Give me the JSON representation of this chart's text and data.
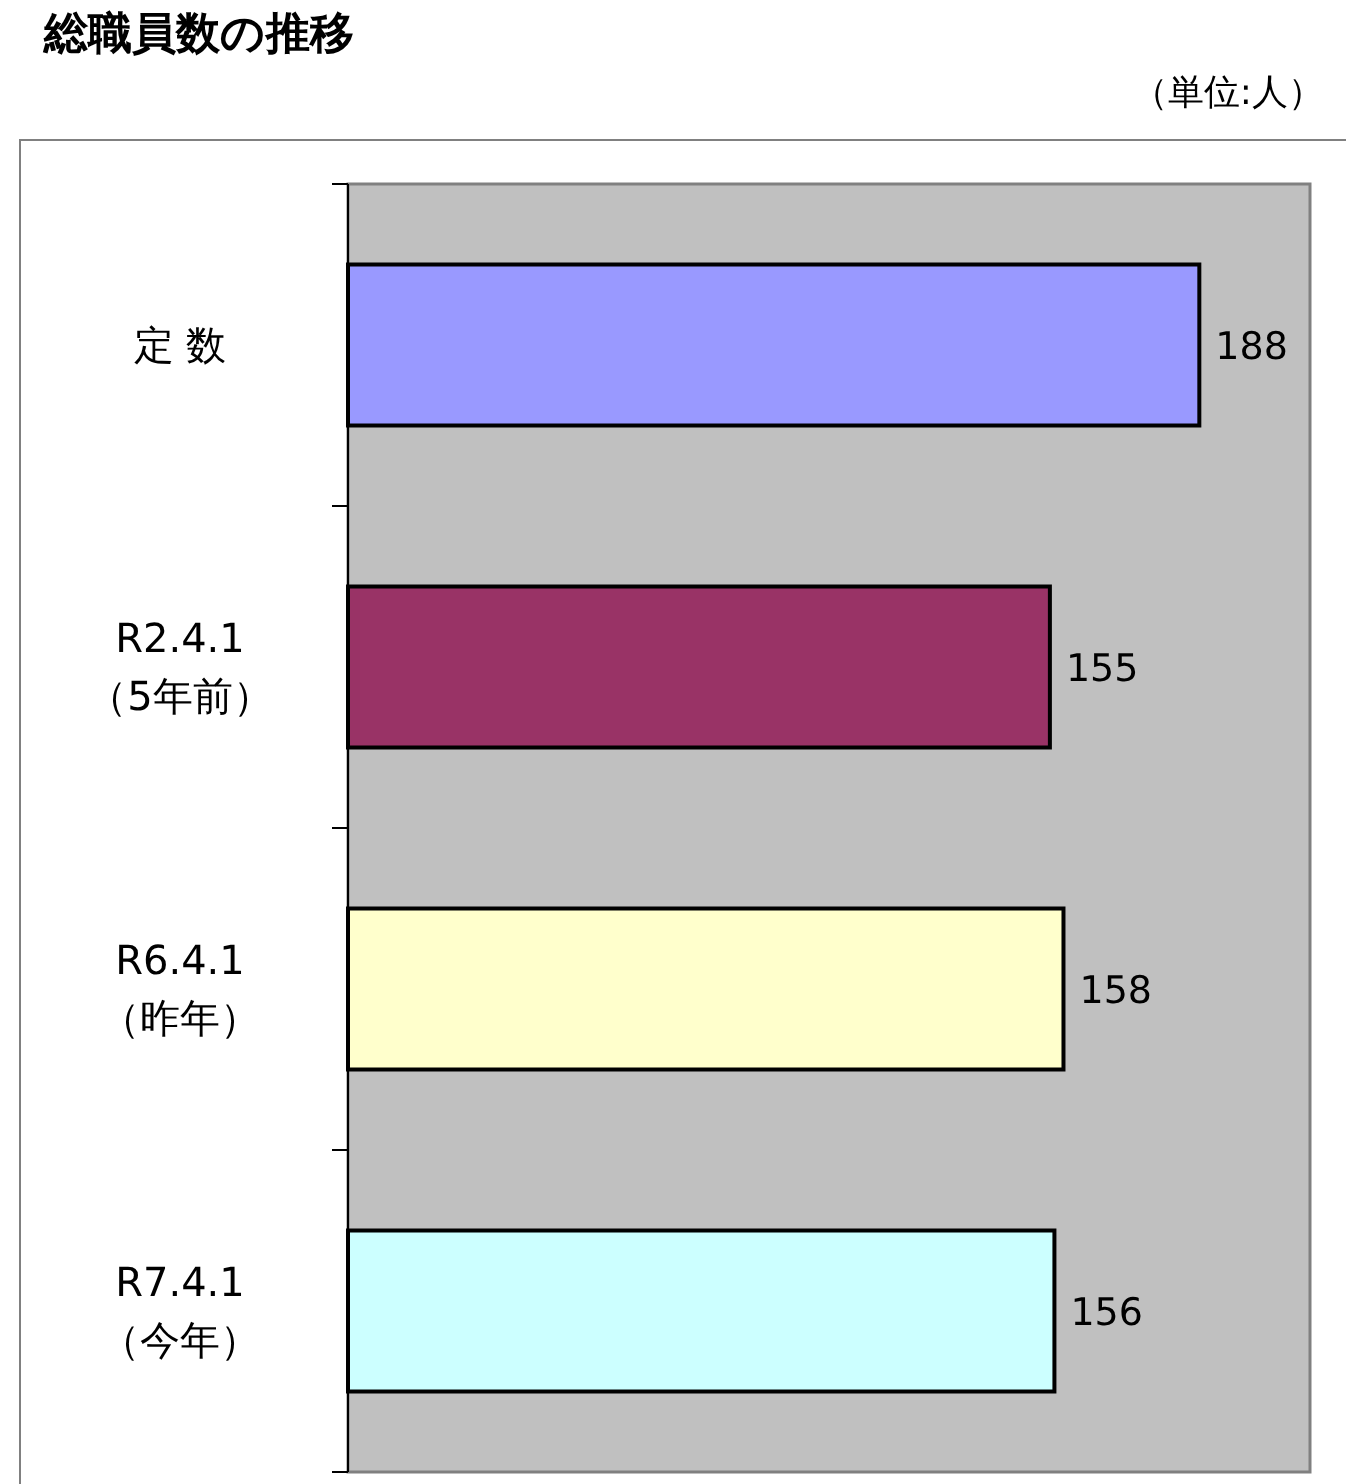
{
  "chart_data": {
    "type": "bar",
    "orientation": "horizontal",
    "title": "総職員数の推移",
    "annotations": [
      "（単位:人）"
    ],
    "categories": [
      "定 数",
      "R2.4.1\n（5年前）",
      "R6.4.1\n（昨年）",
      "R7.4.1\n（今年）"
    ],
    "values": [
      188,
      155,
      158,
      156
    ],
    "colors": [
      "#9999ff",
      "#993366",
      "#ffffcc",
      "#ccffff"
    ],
    "data_labels": true
  }
}
